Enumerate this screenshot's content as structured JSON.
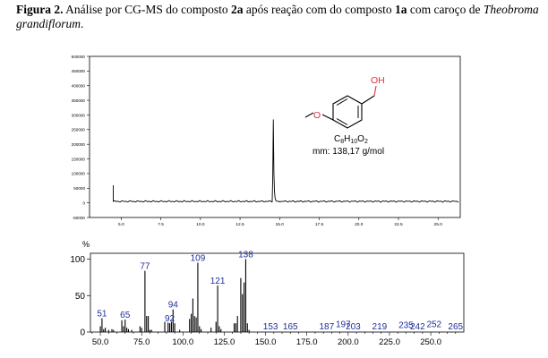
{
  "caption": {
    "label": "Figura 2.",
    "text_1": " Análise por CG-MS do composto ",
    "compound_a": "2a",
    "text_2": " após reação com do composto ",
    "compound_b": "1a",
    "text_3": " com caroço de ",
    "species": "Theobroma grandiflorum",
    "end": "."
  },
  "molecule": {
    "oh_label": "OH",
    "o_label": "O",
    "formula_c": "C",
    "formula_c_sub": "8",
    "formula_h": "H",
    "formula_h_sub": "10",
    "formula_o": "O",
    "formula_o_sub": "2",
    "mass_label": "mm: 138,17 g/mol",
    "color": "#e0303a"
  },
  "chart_data": [
    {
      "type": "line",
      "name": "chromatogram",
      "xlabel": "",
      "ylabel": "",
      "xlim": [
        3,
        26.4
      ],
      "ylim": [
        -50000,
        500000
      ],
      "x_ticks": [
        5.0,
        7.5,
        10.0,
        12.5,
        15.0,
        17.5,
        20.0,
        22.5,
        25.0
      ],
      "x_tick_labels": [
        "5.0",
        "7.5",
        "10.0",
        "12.5",
        "15.0",
        "17.5",
        "20.0",
        "22.5",
        "25.0"
      ],
      "y_ticks": [
        -50000,
        0,
        50000,
        100000,
        150000,
        200000,
        250000,
        300000,
        350000,
        400000,
        450000,
        500000
      ],
      "y_tick_labels": [
        "-50000",
        "0",
        "50000",
        "100000",
        "150000",
        "200000",
        "250000",
        "300000",
        "350000",
        "400000",
        "450000",
        "500000"
      ],
      "baseline": 5000,
      "peaks": [
        {
          "x": 14.6,
          "y": 290000
        }
      ],
      "color": "#000000"
    },
    {
      "type": "bar",
      "name": "mass-spectrum",
      "ylabel": "%",
      "xlabel": "",
      "xlim": [
        44,
        270
      ],
      "ylim": [
        0,
        108
      ],
      "x_ticks": [
        50,
        75,
        100,
        125,
        150,
        175,
        200,
        225,
        250
      ],
      "x_tick_labels": [
        "50.0",
        "75.0",
        "100.0",
        "125.0",
        "150.0",
        "175.0",
        "200.0",
        "225.0",
        "250.0"
      ],
      "y_ticks": [
        0,
        50,
        100
      ],
      "y_tick_labels": [
        "0",
        "50",
        "100"
      ],
      "label_color": "#1f2f9a",
      "bars": [
        {
          "x": 50,
          "y": 8
        },
        {
          "x": 51,
          "y": 19
        },
        {
          "x": 52,
          "y": 4
        },
        {
          "x": 53,
          "y": 6
        },
        {
          "x": 55,
          "y": 3
        },
        {
          "x": 57,
          "y": 4
        },
        {
          "x": 58,
          "y": 3
        },
        {
          "x": 63,
          "y": 16
        },
        {
          "x": 64,
          "y": 8
        },
        {
          "x": 65,
          "y": 17
        },
        {
          "x": 66,
          "y": 6
        },
        {
          "x": 67,
          "y": 4
        },
        {
          "x": 69,
          "y": 3
        },
        {
          "x": 74,
          "y": 8
        },
        {
          "x": 75,
          "y": 6
        },
        {
          "x": 77,
          "y": 84
        },
        {
          "x": 78,
          "y": 22
        },
        {
          "x": 79,
          "y": 22
        },
        {
          "x": 80,
          "y": 3
        },
        {
          "x": 81,
          "y": 3
        },
        {
          "x": 89,
          "y": 14
        },
        {
          "x": 91,
          "y": 13
        },
        {
          "x": 92,
          "y": 12
        },
        {
          "x": 93,
          "y": 14
        },
        {
          "x": 94,
          "y": 31
        },
        {
          "x": 95,
          "y": 12
        },
        {
          "x": 98,
          "y": 3
        },
        {
          "x": 104,
          "y": 18
        },
        {
          "x": 105,
          "y": 25
        },
        {
          "x": 106,
          "y": 46
        },
        {
          "x": 107,
          "y": 22
        },
        {
          "x": 108,
          "y": 20
        },
        {
          "x": 109,
          "y": 95
        },
        {
          "x": 110,
          "y": 8
        },
        {
          "x": 111,
          "y": 4
        },
        {
          "x": 117,
          "y": 6
        },
        {
          "x": 120,
          "y": 14
        },
        {
          "x": 121,
          "y": 64
        },
        {
          "x": 122,
          "y": 8
        },
        {
          "x": 123,
          "y": 4
        },
        {
          "x": 131,
          "y": 12
        },
        {
          "x": 132,
          "y": 12
        },
        {
          "x": 133,
          "y": 22
        },
        {
          "x": 135,
          "y": 74
        },
        {
          "x": 136,
          "y": 52
        },
        {
          "x": 137,
          "y": 68
        },
        {
          "x": 138,
          "y": 100
        },
        {
          "x": 139,
          "y": 12
        },
        {
          "x": 140,
          "y": 3
        }
      ],
      "peak_labels": [
        {
          "x": 51,
          "y": 19,
          "text": "51"
        },
        {
          "x": 65,
          "y": 17,
          "text": "65"
        },
        {
          "x": 77,
          "y": 84,
          "text": "77"
        },
        {
          "x": 92,
          "y": 12,
          "text": "92"
        },
        {
          "x": 94,
          "y": 31,
          "text": "94"
        },
        {
          "x": 109,
          "y": 95,
          "text": "109"
        },
        {
          "x": 121,
          "y": 64,
          "text": "121"
        },
        {
          "x": 138,
          "y": 100,
          "text": "138"
        },
        {
          "x": 153,
          "y": 1,
          "text": "153"
        },
        {
          "x": 165,
          "y": 1,
          "text": "165"
        },
        {
          "x": 187,
          "y": 1,
          "text": "187"
        },
        {
          "x": 197,
          "y": 4,
          "text": "197"
        },
        {
          "x": 203,
          "y": 1,
          "text": "203"
        },
        {
          "x": 219,
          "y": 1,
          "text": "219"
        },
        {
          "x": 235,
          "y": 3,
          "text": "235"
        },
        {
          "x": 242,
          "y": 1,
          "text": "242"
        },
        {
          "x": 252,
          "y": 4,
          "text": "252"
        },
        {
          "x": 265,
          "y": 1,
          "text": "265"
        }
      ]
    }
  ]
}
